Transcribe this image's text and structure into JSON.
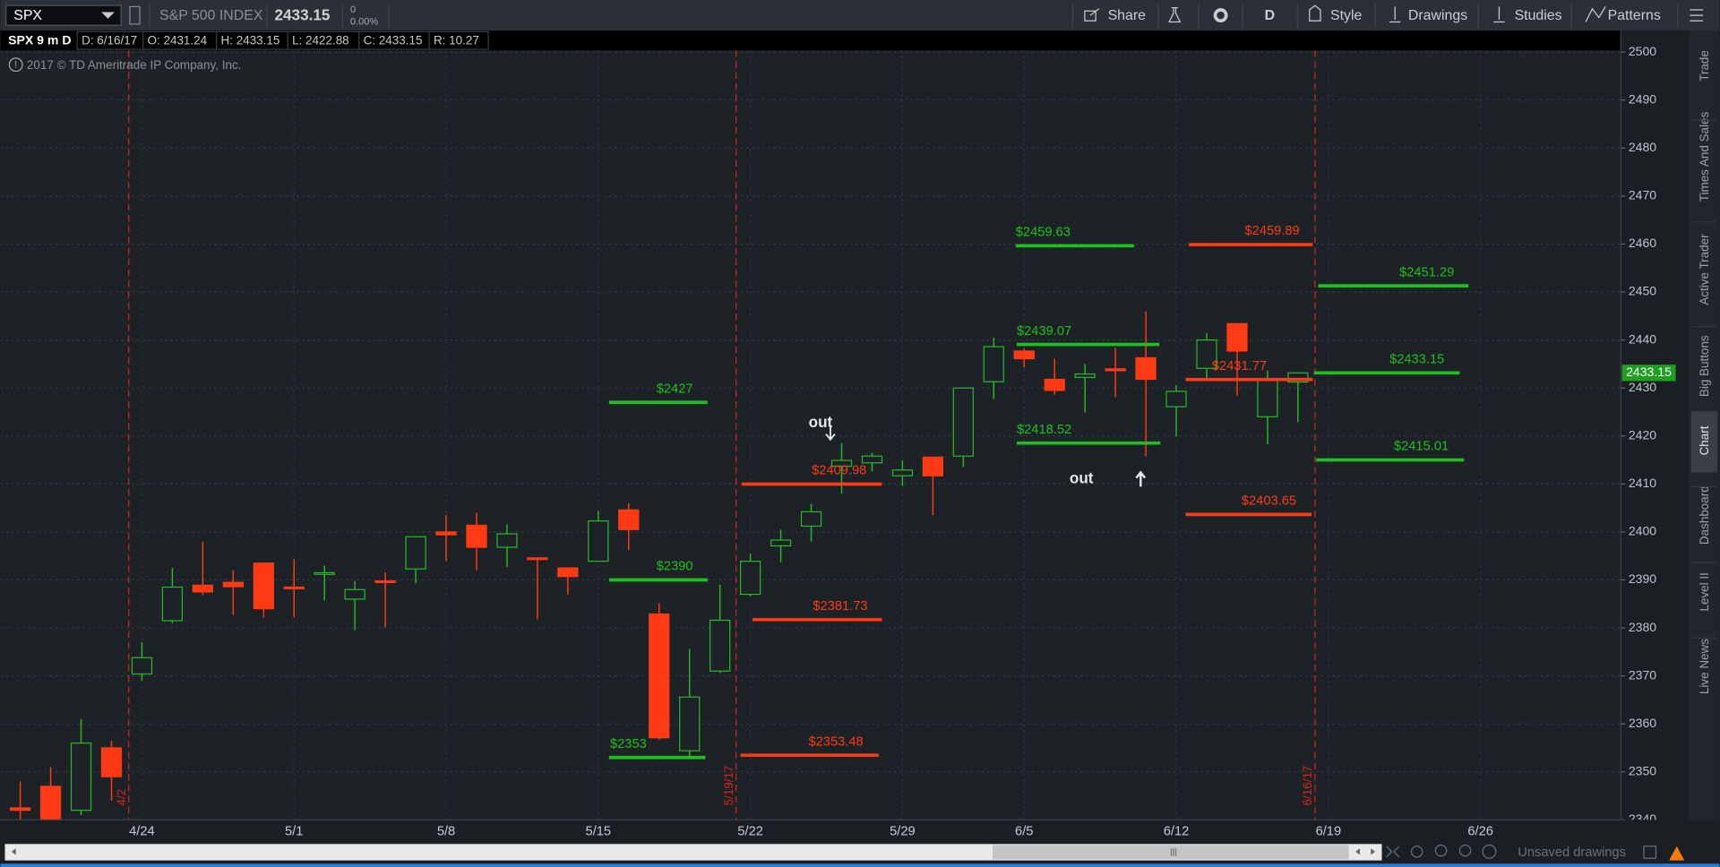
{
  "toolbar": {
    "symbol": "SPX",
    "description": "S&P 500 INDEX",
    "last": "2433.15",
    "change": "0",
    "change_percent": "0.00%",
    "buttons": [
      "Share",
      "D",
      "Style",
      "Drawings",
      "Studies",
      "Patterns"
    ]
  },
  "info_bar": {
    "chart": "SPX 9 m D",
    "fields": [
      "D: 6/16/17",
      "O: 2431.24",
      "H: 2433.15",
      "L: 2422.88",
      "C: 2433.15",
      "R: 10.27"
    ]
  },
  "copyright": "2017 © TD Ameritrade IP Company, Inc.",
  "sidebar_tabs": [
    "Trade",
    "Times And Sales",
    "Active Trader",
    "Big Buttons",
    "Chart",
    "Dashboard",
    "Level II",
    "Live News"
  ],
  "footer": {
    "drawings": "Unsaved drawings"
  },
  "chart_data": {
    "type": "candlestick",
    "categories": [
      null,
      null,
      null,
      null,
      "4/24",
      null,
      null,
      null,
      null,
      "5/1",
      null,
      null,
      null,
      null,
      "5/8",
      null,
      null,
      null,
      null,
      "5/15",
      null,
      null,
      null,
      null,
      "5/22",
      null,
      null,
      null,
      null,
      "5/29",
      null,
      null,
      null,
      "6/5",
      null,
      null,
      null,
      null,
      "6/12",
      null,
      null,
      null,
      null,
      "6/19",
      null,
      null,
      null,
      null,
      "6/26"
    ],
    "open": [
      2342.5,
      2347,
      2342,
      2355,
      2370.4,
      2381.5,
      2388.9,
      2389.5,
      2393.5,
      2388.5,
      2391.3,
      2386,
      2389.8,
      2392.3,
      2400,
      2401.4,
      2396.8,
      2394.6,
      2392.5,
      2393.9,
      2404.6,
      2382.9,
      2354.4,
      2371,
      2387,
      2397.1,
      2401.2,
      2413.7,
      2414.4,
      2411.7,
      2415.6,
      2415.8,
      2431.3,
      2437.7,
      2431.8,
      2432.2,
      2434,
      2436.3,
      2426.1,
      2434.1,
      2443.4,
      2424,
      2431.24,
      null,
      null,
      null,
      null,
      null,
      null
    ],
    "high": [
      2348,
      2351,
      2361,
      2356.5,
      2377,
      2392.5,
      2398,
      2392,
      2393.5,
      2394.3,
      2393,
      2389.8,
      2391.6,
      2399.1,
      2403.5,
      2404,
      2401.6,
      2394.6,
      2392.5,
      2404.4,
      2406,
      2385.2,
      2375.6,
      2389,
      2395.5,
      2400.5,
      2405.8,
      2418.5,
      2416.5,
      2414.9,
      2415.6,
      2430,
      2440.5,
      2438.2,
      2436.1,
      2435,
      2438.4,
      2446,
      2430.6,
      2441.4,
      2443.4,
      2433.6,
      2433.15,
      null,
      null,
      null,
      null,
      null,
      null
    ],
    "low": [
      2340,
      2339,
      2341,
      2344,
      2369,
      2381,
      2386.8,
      2382.7,
      2382.2,
      2382.2,
      2385.7,
      2379.5,
      2380.2,
      2389.3,
      2394,
      2392,
      2392.7,
      2381.8,
      2387,
      2393.9,
      2396.2,
      2356.7,
      2353.2,
      2370.6,
      2386.6,
      2393.7,
      2398,
      2408,
      2412.6,
      2409.6,
      2403.5,
      2413.5,
      2427.7,
      2434.3,
      2428.6,
      2424.9,
      2428.1,
      2415.8,
      2419.9,
      2432,
      2428.4,
      2418.3,
      2422.88,
      null,
      null,
      null,
      null,
      null,
      null
    ],
    "close": [
      2342,
      2340,
      2356,
      2349,
      2373.8,
      2388.5,
      2387.5,
      2388.6,
      2384,
      2388.3,
      2391.5,
      2388,
      2389.5,
      2399,
      2399.4,
      2396.8,
      2399.6,
      2394.4,
      2390.7,
      2402.3,
      2400.5,
      2357.1,
      2365.6,
      2381.6,
      2393.9,
      2398.3,
      2404.2,
      2414.9,
      2415.8,
      2412.9,
      2411.7,
      2430,
      2438.6,
      2436.1,
      2429.5,
      2432.9,
      2433.6,
      2431.8,
      2429.3,
      2440,
      2437.7,
      2431.8,
      2433.15,
      null,
      null,
      null,
      null,
      null,
      null
    ],
    "up_color": "#2bb52b",
    "down_color": "#ff3a14",
    "ylim": [
      2340,
      2504
    ],
    "yticks": [
      2340,
      2350,
      2360,
      2370,
      2380,
      2390,
      2400,
      2410,
      2420,
      2430,
      2440,
      2450,
      2460,
      2470,
      2480,
      2490,
      2500
    ],
    "grid": true,
    "last_price": 2433.15,
    "levels": [
      {
        "label": "$2427",
        "value": 2427,
        "color": "#1fbf1f"
      },
      {
        "label": "$2390",
        "value": 2390,
        "color": "#1fbf1f"
      },
      {
        "label": "$2353",
        "value": 2353,
        "color": "#1fbf1f"
      },
      {
        "label": "$2409.98",
        "value": 2409.98,
        "color": "#ff3a14"
      },
      {
        "label": "$2381.73",
        "value": 2381.73,
        "color": "#ff3a14"
      },
      {
        "label": "$2353.48",
        "value": 2353.48,
        "color": "#ff3a14"
      },
      {
        "label": "$2459.63",
        "value": 2459.63,
        "color": "#1fbf1f"
      },
      {
        "label": "$2439.07",
        "value": 2439.07,
        "color": "#1fbf1f"
      },
      {
        "label": "$2418.52",
        "value": 2418.52,
        "color": "#1fbf1f"
      },
      {
        "label": "$2459.89",
        "value": 2459.89,
        "color": "#ff3a14"
      },
      {
        "label": "$2431.77",
        "value": 2431.77,
        "color": "#ff3a14"
      },
      {
        "label": "$2403.65",
        "value": 2403.65,
        "color": "#ff3a14"
      },
      {
        "label": "$2451.29",
        "value": 2451.29,
        "color": "#1fbf1f"
      },
      {
        "label": "$2433.15",
        "value": 2433.15,
        "color": "#1fbf1f"
      },
      {
        "label": "$2415.01",
        "value": 2415.01,
        "color": "#1fbf1f"
      }
    ],
    "markers": [
      "4/2",
      "5/19/17",
      "6/16/17"
    ],
    "annotations": [
      "out",
      "out"
    ]
  }
}
